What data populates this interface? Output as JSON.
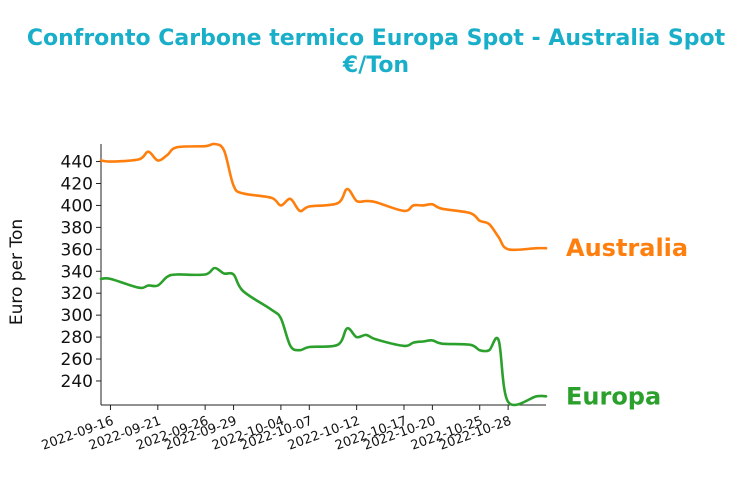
{
  "chart_data": {
    "type": "line",
    "title_lines": [
      "Confronto Carbone termico Europa Spot - Australia Spot",
      "€/Ton"
    ],
    "ylabel": "Euro per Ton",
    "xlabel": "",
    "ylim": [
      219,
      456
    ],
    "y_ticks": [
      240,
      260,
      280,
      300,
      320,
      340,
      360,
      380,
      400,
      420,
      440
    ],
    "x_ticks": [
      "2022-09-16",
      "2022-09-21",
      "2022-09-26",
      "2022-09-29",
      "2022-10-04",
      "2022-10-07",
      "2022-10-12",
      "2022-10-17",
      "2022-10-20",
      "2022-10-25",
      "2022-10-28"
    ],
    "x": [
      "2022-09-15",
      "2022-09-16",
      "2022-09-19",
      "2022-09-20",
      "2022-09-21",
      "2022-09-22",
      "2022-09-23",
      "2022-09-26",
      "2022-09-27",
      "2022-09-28",
      "2022-09-29",
      "2022-09-30",
      "2022-10-03",
      "2022-10-04",
      "2022-10-05",
      "2022-10-06",
      "2022-10-07",
      "2022-10-10",
      "2022-10-11",
      "2022-10-12",
      "2022-10-13",
      "2022-10-14",
      "2022-10-17",
      "2022-10-18",
      "2022-10-19",
      "2022-10-20",
      "2022-10-21",
      "2022-10-24",
      "2022-10-25",
      "2022-10-26",
      "2022-10-27",
      "2022-10-28",
      "2022-10-31",
      "2022-11-01"
    ],
    "grid": false,
    "series": [
      {
        "name": "Australia",
        "color": "#ff7f0e",
        "values": [
          441,
          440,
          442,
          449,
          441,
          446,
          453,
          454,
          456,
          450,
          418,
          411,
          407,
          400,
          406,
          395,
          399,
          402,
          415,
          404,
          404,
          403,
          395,
          400,
          400,
          401,
          397,
          393,
          386,
          383,
          371,
          360,
          361,
          361
        ]
      },
      {
        "name": "Europa",
        "color": "#2ca02c",
        "values": [
          333,
          333,
          325,
          327,
          327,
          335,
          337,
          337,
          343,
          338,
          337,
          322,
          305,
          297,
          272,
          268,
          271,
          273,
          288,
          280,
          282,
          278,
          272,
          275,
          276,
          277,
          274,
          273,
          268,
          268,
          277,
          221,
          226,
          226
        ]
      }
    ]
  }
}
